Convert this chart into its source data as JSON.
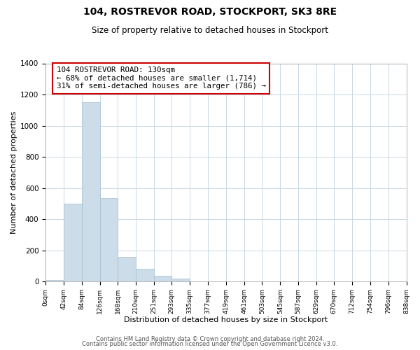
{
  "title": "104, ROSTREVOR ROAD, STOCKPORT, SK3 8RE",
  "subtitle": "Size of property relative to detached houses in Stockport",
  "xlabel": "Distribution of detached houses by size in Stockport",
  "ylabel": "Number of detached properties",
  "bar_color": "#ccdce8",
  "bar_edge_color": "#a8c0d0",
  "bin_labels": [
    "0sqm",
    "42sqm",
    "84sqm",
    "126sqm",
    "168sqm",
    "210sqm",
    "251sqm",
    "293sqm",
    "335sqm",
    "377sqm",
    "419sqm",
    "461sqm",
    "503sqm",
    "545sqm",
    "587sqm",
    "629sqm",
    "670sqm",
    "712sqm",
    "754sqm",
    "796sqm",
    "838sqm"
  ],
  "bar_heights": [
    10,
    500,
    1150,
    535,
    160,
    82,
    35,
    18,
    0,
    0,
    0,
    0,
    0,
    0,
    0,
    0,
    0,
    0,
    0,
    0
  ],
  "ylim": [
    0,
    1400
  ],
  "yticks": [
    0,
    200,
    400,
    600,
    800,
    1000,
    1200,
    1400
  ],
  "annotation_line1": "104 ROSTREVOR ROAD: 130sqm",
  "annotation_line2": "← 68% of detached houses are smaller (1,714)",
  "annotation_line3": "31% of semi-detached houses are larger (786) →",
  "annotation_box_color": "#ffffff",
  "annotation_box_edge_color": "#cc0000",
  "footer_line1": "Contains HM Land Registry data © Crown copyright and database right 2024.",
  "footer_line2": "Contains public sector information licensed under the Open Government Licence v3.0.",
  "background_color": "#ffffff",
  "grid_color": "#c8d8e4"
}
